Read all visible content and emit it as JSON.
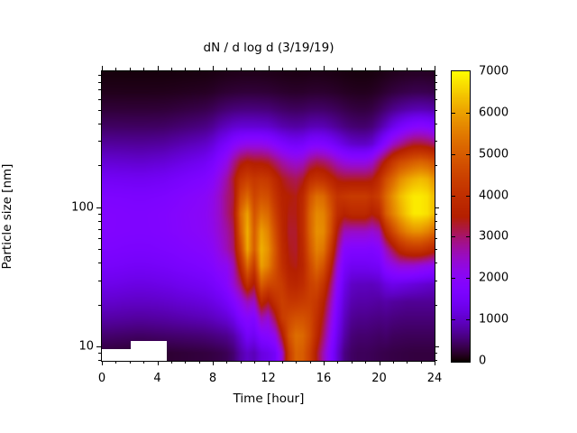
{
  "figure": {
    "background": "#ffffff"
  },
  "chart_data": {
    "type": "heatmap",
    "title": "dN / d log d (3/19/19)",
    "xlabel": "Time [hour]",
    "ylabel": "Particle size [nm]",
    "x_range": [
      0,
      24
    ],
    "x_major_ticks": [
      0,
      4,
      8,
      12,
      16,
      20,
      24
    ],
    "x_minor_step": 1,
    "y_scale": "log",
    "y_range": [
      7.9,
      950
    ],
    "y_major_ticks": [
      10,
      100
    ],
    "y_minor_ticks": [
      8,
      9,
      20,
      30,
      40,
      50,
      60,
      70,
      80,
      90,
      200,
      300,
      400,
      500,
      600,
      700,
      800,
      900
    ],
    "grid_lines": "off",
    "legend": "none",
    "colorbar": {
      "position": "right",
      "min": 0,
      "max": 7000,
      "ticks": [
        0,
        1000,
        2000,
        3000,
        4000,
        5000,
        6000,
        7000
      ],
      "colormap": "gnuplot",
      "stops": {
        "0": "#000000",
        "1750": "#8004ff",
        "3500": "#b42000",
        "5250": "#dd6c00",
        "7000": "#ffff00"
      }
    },
    "no_data_color": "#ffffff",
    "no_data_regions": [
      {
        "t": [
          0.0,
          4.7
        ],
        "size": [
          7.9,
          9.6
        ]
      },
      {
        "t": [
          2.1,
          4.7
        ],
        "size": [
          7.9,
          11.0
        ]
      }
    ],
    "grid": {
      "times": [
        0,
        0.5,
        1,
        1.5,
        2,
        2.5,
        3,
        3.5,
        4,
        4.5,
        5,
        5.5,
        6,
        6.5,
        7,
        7.5,
        8,
        8.5,
        9,
        9.5,
        10,
        10.5,
        11,
        11.5,
        12,
        12.5,
        13,
        13.5,
        14,
        14.5,
        15,
        15.5,
        16,
        16.5,
        17,
        17.5,
        18,
        18.5,
        19,
        19.5,
        20,
        20.5,
        21,
        21.5,
        22,
        22.5,
        23,
        23.5,
        24
      ],
      "sizes": [
        9,
        12,
        16,
        21,
        28,
        38,
        50,
        67,
        90,
        120,
        160,
        213,
        284,
        379,
        505,
        673,
        897
      ],
      "values": [
        [
          250,
          240,
          230,
          220,
          210,
          200,
          200,
          200,
          210,
          220,
          230,
          240,
          250,
          260,
          270,
          280,
          300,
          330,
          380,
          500,
          800,
          1000,
          900,
          1200,
          1300,
          1500,
          2400,
          4300,
          5100,
          5000,
          4400,
          3400,
          2600,
          1800,
          1100,
          600,
          450,
          400,
          400,
          380,
          350,
          330,
          310,
          300,
          290,
          280,
          280,
          280,
          280
        ],
        [
          500,
          490,
          480,
          470,
          460,
          450,
          450,
          460,
          470,
          480,
          490,
          500,
          510,
          520,
          530,
          550,
          580,
          620,
          660,
          800,
          1100,
          1500,
          1400,
          1800,
          1900,
          2200,
          3400,
          4800,
          5300,
          5200,
          4700,
          3800,
          3000,
          2100,
          1300,
          800,
          550,
          500,
          500,
          480,
          450,
          480,
          420,
          410,
          400,
          400,
          400,
          400,
          400
        ],
        [
          800,
          790,
          780,
          770,
          760,
          750,
          750,
          760,
          770,
          780,
          800,
          820,
          840,
          860,
          880,
          900,
          950,
          1020,
          1100,
          1300,
          1700,
          1900,
          1800,
          2600,
          2400,
          3200,
          4300,
          4600,
          4800,
          4800,
          4600,
          4000,
          3300,
          2400,
          1500,
          950,
          700,
          650,
          650,
          620,
          600,
          620,
          580,
          560,
          550,
          550,
          550,
          550,
          550
        ],
        [
          1050,
          1040,
          1030,
          1010,
          1000,
          990,
          990,
          1000,
          1010,
          1030,
          1050,
          1080,
          1100,
          1120,
          1150,
          1180,
          1250,
          1350,
          1500,
          1800,
          2200,
          2600,
          2500,
          3800,
          3400,
          4000,
          4400,
          4200,
          4200,
          4300,
          4400,
          4200,
          3600,
          2700,
          1700,
          1100,
          850,
          800,
          800,
          780,
          750,
          800,
          750,
          730,
          700,
          700,
          700,
          700,
          700
        ],
        [
          1300,
          1290,
          1280,
          1260,
          1240,
          1230,
          1230,
          1240,
          1260,
          1280,
          1300,
          1340,
          1370,
          1400,
          1430,
          1470,
          1560,
          1700,
          1900,
          2400,
          3000,
          4000,
          3400,
          5000,
          4600,
          4500,
          4300,
          3800,
          3700,
          3900,
          4400,
          4600,
          4100,
          3100,
          2000,
          1300,
          1000,
          950,
          950,
          930,
          1000,
          1200,
          1300,
          1250,
          1200,
          1150,
          1100,
          1050,
          1000
        ],
        [
          1550,
          1540,
          1530,
          1510,
          1490,
          1480,
          1480,
          1490,
          1510,
          1530,
          1560,
          1600,
          1630,
          1660,
          1700,
          1750,
          1850,
          2050,
          2100,
          2600,
          3800,
          5200,
          4300,
          6000,
          5600,
          4800,
          4000,
          3500,
          3400,
          3700,
          4600,
          5200,
          4800,
          3700,
          2400,
          1600,
          1400,
          1400,
          1400,
          1450,
          1500,
          2000,
          2200,
          2400,
          2400,
          2400,
          2300,
          2200,
          2100
        ],
        [
          1700,
          1690,
          1680,
          1660,
          1650,
          1640,
          1640,
          1650,
          1670,
          1690,
          1720,
          1760,
          1800,
          1830,
          1870,
          1920,
          2050,
          2300,
          2600,
          3000,
          4500,
          6100,
          5000,
          6200,
          5800,
          4900,
          3900,
          3400,
          3300,
          3800,
          4900,
          5600,
          5400,
          4300,
          2900,
          1900,
          1800,
          1800,
          1800,
          1750,
          1900,
          2600,
          3200,
          3800,
          4100,
          4200,
          4200,
          4000,
          3700
        ],
        [
          1800,
          1790,
          1780,
          1760,
          1750,
          1740,
          1740,
          1750,
          1770,
          1790,
          1830,
          1870,
          1910,
          1950,
          1990,
          2050,
          2200,
          2450,
          2700,
          3100,
          5000,
          6200,
          5000,
          6000,
          5600,
          4700,
          3800,
          3300,
          3300,
          3900,
          5100,
          5800,
          5700,
          4800,
          3400,
          2600,
          2500,
          2500,
          2500,
          2400,
          2600,
          3800,
          4600,
          5200,
          5600,
          5800,
          5800,
          5600,
          5200
        ],
        [
          1800,
          1790,
          1780,
          1770,
          1750,
          1740,
          1740,
          1760,
          1780,
          1800,
          1840,
          1880,
          1930,
          1970,
          2010,
          2080,
          2250,
          2500,
          2900,
          3300,
          5200,
          6000,
          4800,
          5400,
          5200,
          4400,
          3700,
          3400,
          3400,
          3900,
          5100,
          5700,
          5600,
          4900,
          3900,
          3600,
          3800,
          3800,
          3800,
          3500,
          3800,
          5000,
          5600,
          6100,
          6500,
          6800,
          6800,
          6700,
          6300
        ],
        [
          1700,
          1690,
          1680,
          1670,
          1660,
          1650,
          1650,
          1660,
          1680,
          1700,
          1750,
          1800,
          1850,
          1900,
          1950,
          2020,
          2200,
          2500,
          2900,
          3200,
          4700,
          5200,
          4500,
          4800,
          4700,
          4100,
          3600,
          3500,
          3400,
          3800,
          4800,
          5300,
          5200,
          4600,
          4100,
          4200,
          4300,
          4300,
          4300,
          4100,
          4400,
          5200,
          5800,
          6300,
          6600,
          6800,
          6800,
          6700,
          6300
        ],
        [
          1450,
          1440,
          1430,
          1420,
          1410,
          1400,
          1400,
          1420,
          1440,
          1460,
          1510,
          1560,
          1610,
          1660,
          1710,
          1790,
          1950,
          2300,
          2700,
          3300,
          4100,
          4400,
          4200,
          4300,
          4200,
          3800,
          3400,
          3200,
          3100,
          3300,
          3900,
          4100,
          4000,
          3700,
          3400,
          3300,
          3300,
          3300,
          3300,
          3400,
          3900,
          4700,
          5200,
          5700,
          6000,
          6200,
          6300,
          6200,
          5800
        ],
        [
          1100,
          1090,
          1080,
          1070,
          1060,
          1050,
          1050,
          1070,
          1090,
          1110,
          1160,
          1210,
          1260,
          1310,
          1360,
          1440,
          1600,
          1900,
          2200,
          2800,
          3300,
          3500,
          3400,
          3400,
          3300,
          3000,
          2700,
          2500,
          2400,
          2500,
          2900,
          3100,
          3000,
          2800,
          2500,
          2300,
          2200,
          2200,
          2200,
          2400,
          3000,
          3600,
          4200,
          4600,
          4800,
          5000,
          5100,
          5000,
          4700
        ],
        [
          750,
          745,
          740,
          735,
          730,
          725,
          725,
          735,
          745,
          760,
          800,
          840,
          880,
          920,
          960,
          1020,
          1150,
          1400,
          1600,
          1900,
          2100,
          2200,
          2200,
          2200,
          2100,
          1900,
          1700,
          1550,
          1500,
          1550,
          1750,
          1800,
          1750,
          1600,
          1400,
          1200,
          1050,
          1000,
          1000,
          1100,
          1500,
          2000,
          2500,
          2800,
          3100,
          3300,
          3300,
          3200,
          3000
        ],
        [
          450,
          448,
          445,
          442,
          440,
          438,
          438,
          442,
          446,
          455,
          480,
          505,
          530,
          555,
          580,
          620,
          700,
          850,
          950,
          1050,
          1100,
          1100,
          1100,
          1080,
          1050,
          950,
          850,
          800,
          780,
          800,
          880,
          900,
          880,
          800,
          700,
          600,
          530,
          500,
          500,
          560,
          750,
          1000,
          1300,
          1550,
          1750,
          1900,
          1950,
          1900,
          1750
        ],
        [
          250,
          249,
          248,
          246,
          245,
          244,
          244,
          246,
          248,
          253,
          265,
          280,
          295,
          310,
          325,
          345,
          390,
          460,
          510,
          550,
          570,
          580,
          575,
          565,
          550,
          500,
          460,
          430,
          420,
          430,
          460,
          470,
          460,
          430,
          390,
          340,
          300,
          280,
          280,
          310,
          400,
          520,
          640,
          730,
          800,
          850,
          870,
          850,
          790
        ],
        [
          120,
          119,
          119,
          118,
          117,
          117,
          117,
          118,
          119,
          121,
          126,
          132,
          138,
          144,
          150,
          158,
          175,
          205,
          225,
          240,
          250,
          255,
          252,
          248,
          240,
          222,
          205,
          193,
          188,
          192,
          205,
          210,
          205,
          193,
          175,
          155,
          140,
          132,
          132,
          145,
          180,
          230,
          275,
          310,
          335,
          355,
          360,
          350,
          330
        ],
        [
          60,
          60,
          59,
          59,
          58,
          58,
          58,
          59,
          59,
          60,
          63,
          66,
          69,
          72,
          75,
          79,
          87,
          100,
          110,
          117,
          122,
          124,
          123,
          121,
          117,
          109,
          101,
          95,
          93,
          94,
          101,
          103,
          101,
          95,
          87,
          77,
          70,
          66,
          66,
          72,
          89,
          113,
          135,
          152,
          164,
          173,
          176,
          171,
          161
        ]
      ]
    }
  }
}
